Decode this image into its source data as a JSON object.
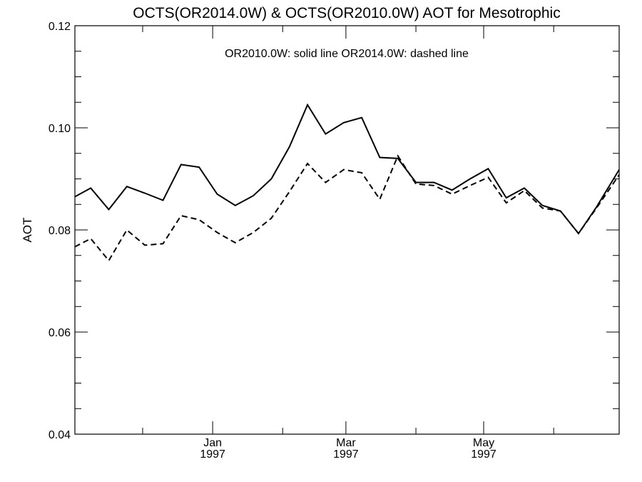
{
  "chart_data": {
    "type": "line",
    "title": "OCTS(OR2014.0W) & OCTS(OR2010.0W)  AOT for Mesotrophic",
    "annotation": "OR2010.0W: solid line   OR2014.0W: dashed line",
    "xlabel": "",
    "ylabel": "AOT",
    "xlim": [
      "1996-11-01",
      "1997-06-30"
    ],
    "ylim": [
      0.04,
      0.12
    ],
    "y_ticks": [
      "0.04",
      "0.06",
      "0.08",
      "0.10",
      "0.12"
    ],
    "x_ticks": [
      {
        "date": "1997-01-01",
        "month": "Jan",
        "year": "1997"
      },
      {
        "date": "1997-03-01",
        "month": "Mar",
        "year": "1997"
      },
      {
        "date": "1997-05-01",
        "month": "May",
        "year": "1997"
      }
    ],
    "x": [
      "1996-11-01",
      "1996-11-08",
      "1996-11-16",
      "1996-11-24",
      "1996-12-02",
      "1996-12-10",
      "1996-12-18",
      "1996-12-26",
      "1997-01-03",
      "1997-01-11",
      "1997-01-19",
      "1997-01-27",
      "1997-02-04",
      "1997-02-12",
      "1997-02-20",
      "1997-02-28",
      "1997-03-08",
      "1997-03-16",
      "1997-03-24",
      "1997-04-01",
      "1997-04-09",
      "1997-04-17",
      "1997-04-25",
      "1997-05-03",
      "1997-05-11",
      "1997-05-19",
      "1997-05-27",
      "1997-06-04",
      "1997-06-12",
      "1997-06-20",
      "1997-06-30"
    ],
    "series": [
      {
        "name": "OR2010.0W",
        "style": "solid",
        "values": [
          0.0865,
          0.0882,
          0.084,
          0.0885,
          0.0872,
          0.0858,
          0.0928,
          0.0923,
          0.087,
          0.0848,
          0.0867,
          0.09,
          0.0963,
          0.1045,
          0.0988,
          0.101,
          0.102,
          0.0942,
          0.094,
          0.0893,
          0.0893,
          0.0878,
          0.09,
          0.092,
          0.0863,
          0.0882,
          0.0848,
          0.0837,
          0.0793,
          0.0845,
          0.0918
        ]
      },
      {
        "name": "OR2014.0W",
        "style": "dashed",
        "values": [
          0.0767,
          0.0783,
          0.074,
          0.08,
          0.077,
          0.0773,
          0.0828,
          0.082,
          0.0795,
          0.0775,
          0.0795,
          0.0823,
          0.0875,
          0.093,
          0.0893,
          0.0918,
          0.0912,
          0.086,
          0.0945,
          0.089,
          0.0887,
          0.087,
          0.0887,
          0.0903,
          0.0853,
          0.0877,
          0.0843,
          0.0837,
          0.0793,
          0.0843,
          0.0908
        ]
      }
    ],
    "grid": false,
    "colors": {
      "line": "#000000",
      "background": "#ffffff"
    }
  }
}
